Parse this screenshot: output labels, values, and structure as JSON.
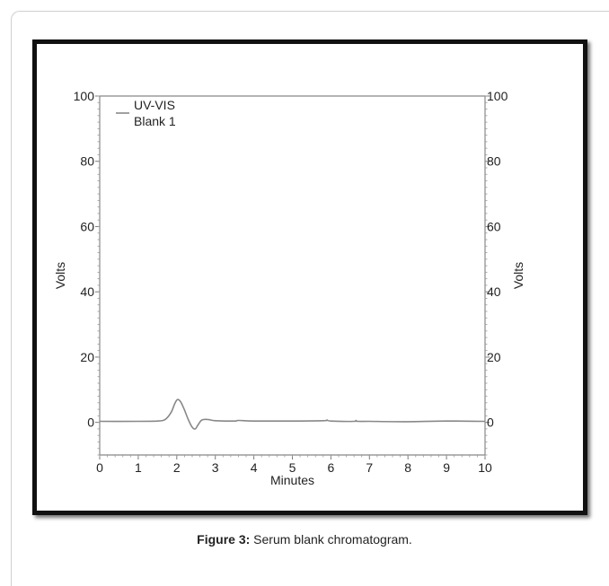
{
  "caption": {
    "label": "Figure 3:",
    "text": " Serum blank chromatogram."
  },
  "chart_data": {
    "type": "line",
    "title": "",
    "xlabel": "Minutes",
    "ylabel": "Volts",
    "y2label": "Volts",
    "xlim": [
      0,
      10
    ],
    "ylim": [
      -10,
      100
    ],
    "x_ticks": [
      0,
      1,
      2,
      3,
      4,
      5,
      6,
      7,
      8,
      9,
      10
    ],
    "y_ticks": [
      0,
      20,
      40,
      60,
      80,
      100
    ],
    "y2_ticks": [
      0,
      20,
      40,
      60,
      80,
      100
    ],
    "grid": false,
    "legend_position": "top-left",
    "legend": [
      {
        "line1": "UV-VIS",
        "line2": "Blank 1"
      }
    ],
    "series": [
      {
        "name": "UV-VIS Blank 1",
        "color": "#888888",
        "x": [
          0,
          1.0,
          1.5,
          1.7,
          1.85,
          1.95,
          2.02,
          2.1,
          2.2,
          2.3,
          2.4,
          2.48,
          2.55,
          2.65,
          2.8,
          3.0,
          3.5,
          3.6,
          4.0,
          5.0,
          5.8,
          5.9,
          6.0,
          6.6,
          6.65,
          6.7,
          7.0,
          8.0,
          9.0,
          10.0
        ],
        "y": [
          0.3,
          0.3,
          0.4,
          0.9,
          3.0,
          5.8,
          7.0,
          6.3,
          3.8,
          0.8,
          -1.5,
          -2.0,
          -0.8,
          0.7,
          0.9,
          0.5,
          0.4,
          0.6,
          0.4,
          0.4,
          0.5,
          0.7,
          0.4,
          0.3,
          0.6,
          0.3,
          0.3,
          0.2,
          0.4,
          0.3
        ]
      }
    ]
  }
}
